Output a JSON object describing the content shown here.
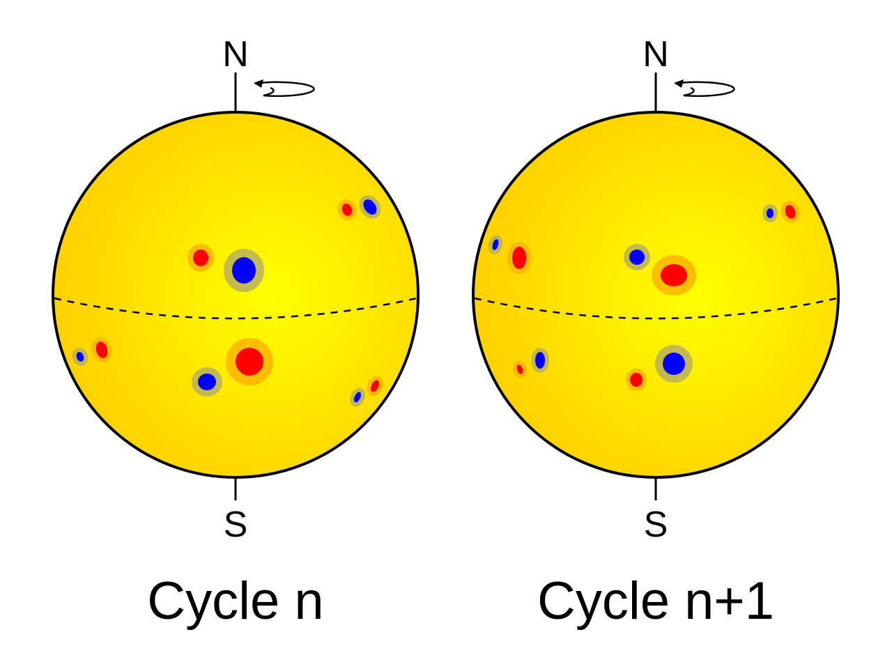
{
  "colors": {
    "sun_center": "#ffff00",
    "sun_edge": "#ffd000",
    "outline": "#000000",
    "positive_polarity": "#ff0000",
    "negative_polarity": "#0000ff",
    "halo_positive": "#ffb300",
    "halo_negative": "#b8b05a"
  },
  "panels": [
    {
      "north_label": "N",
      "south_label": "S",
      "caption": "Cycle n",
      "spots": [
        {
          "polarity": "positive",
          "size": "small"
        },
        {
          "polarity": "negative",
          "size": "small"
        },
        {
          "polarity": "positive",
          "size": "small"
        },
        {
          "polarity": "negative",
          "size": "large"
        },
        {
          "polarity": "negative",
          "size": "tiny"
        },
        {
          "polarity": "positive",
          "size": "small"
        },
        {
          "polarity": "positive",
          "size": "large"
        },
        {
          "polarity": "negative",
          "size": "medium"
        },
        {
          "polarity": "negative",
          "size": "tiny"
        },
        {
          "polarity": "positive",
          "size": "tiny"
        }
      ]
    },
    {
      "north_label": "N",
      "south_label": "S",
      "caption": "Cycle n+1",
      "spots": [
        {
          "polarity": "negative",
          "size": "tiny"
        },
        {
          "polarity": "positive",
          "size": "small"
        },
        {
          "polarity": "negative",
          "size": "tiny"
        },
        {
          "polarity": "positive",
          "size": "small"
        },
        {
          "polarity": "negative",
          "size": "small"
        },
        {
          "polarity": "positive",
          "size": "large"
        },
        {
          "polarity": "positive",
          "size": "tiny"
        },
        {
          "polarity": "negative",
          "size": "small"
        },
        {
          "polarity": "negative",
          "size": "large"
        },
        {
          "polarity": "positive",
          "size": "small"
        }
      ]
    }
  ]
}
